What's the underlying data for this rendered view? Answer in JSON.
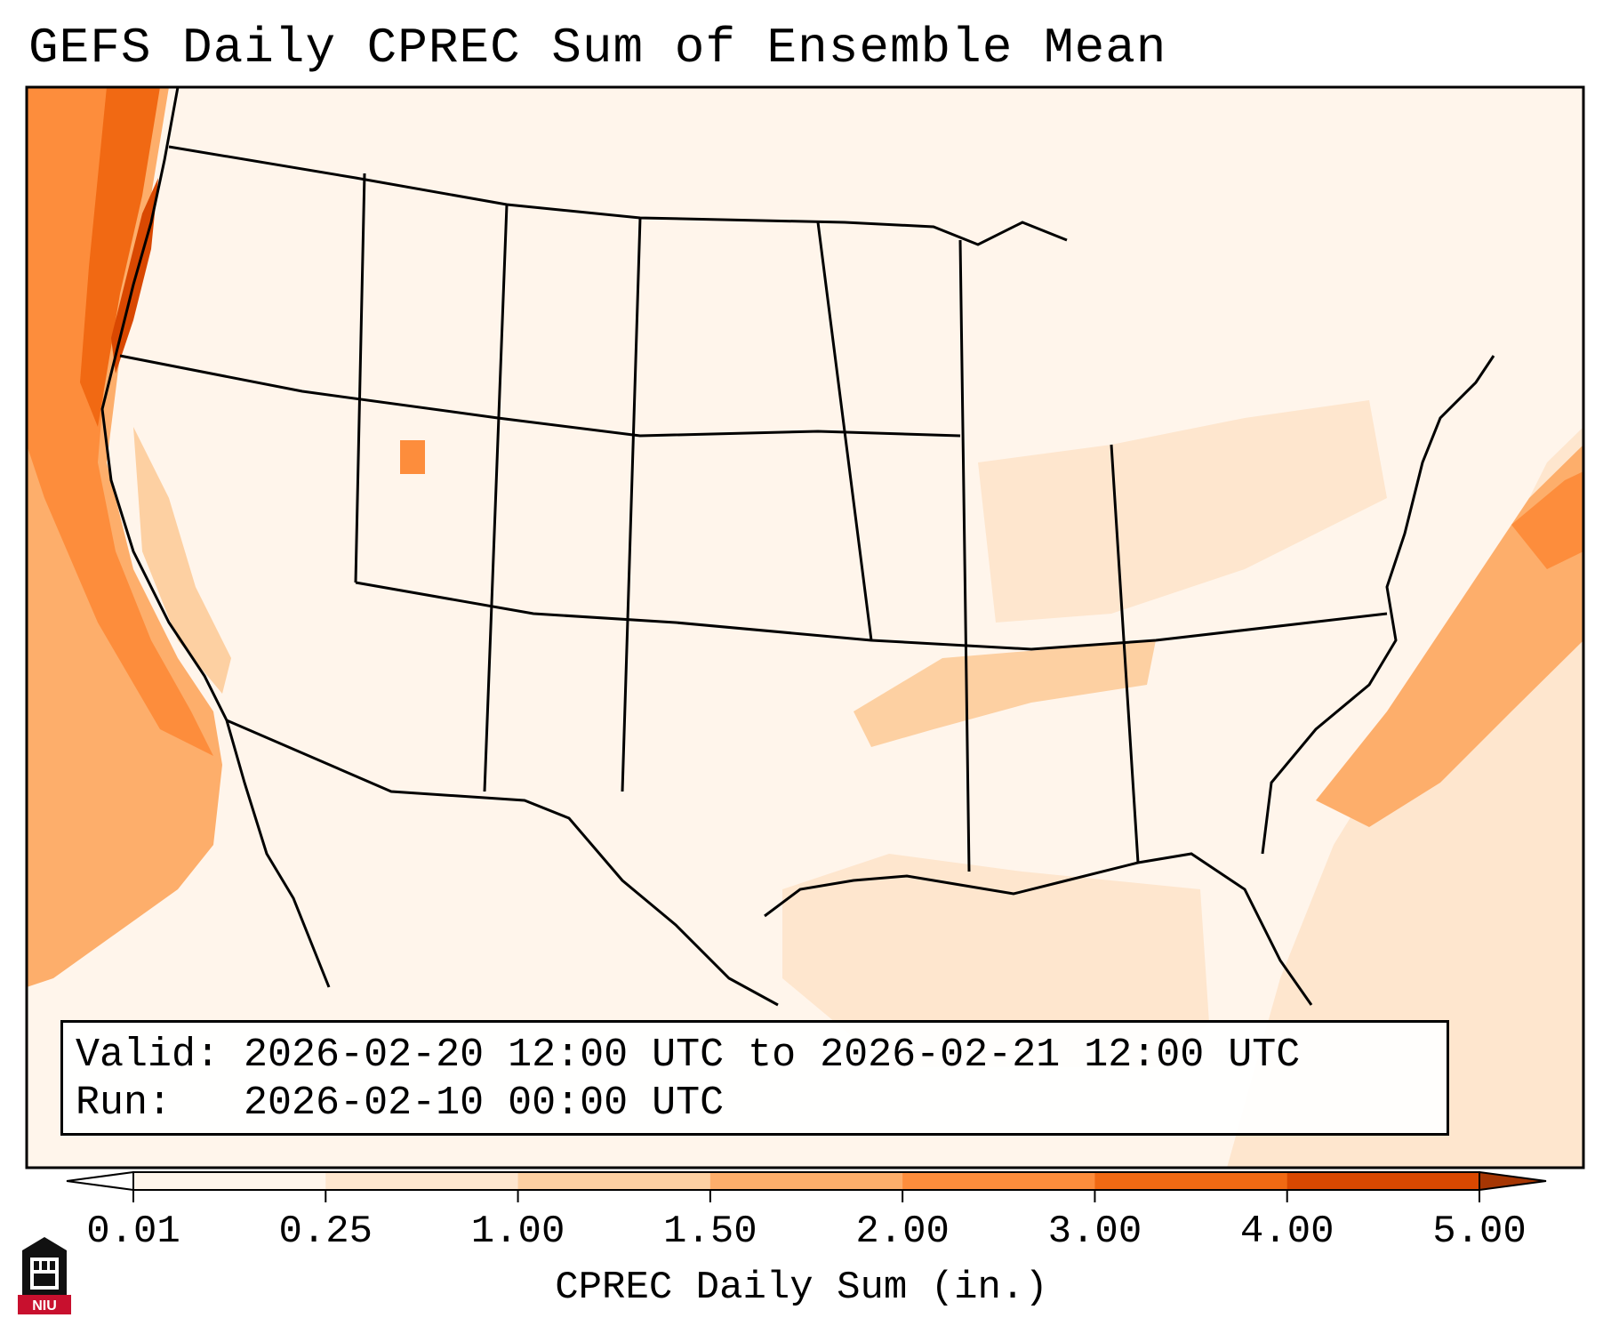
{
  "title": "GEFS Daily CPREC Sum of Ensemble Mean",
  "info": {
    "valid_label": "Valid:",
    "valid_value": "2026-02-20 12:00 UTC to 2026-02-21 12:00 UTC",
    "run_label": "Run:",
    "run_value": "2026-02-10 00:00 UTC"
  },
  "colorbar": {
    "ticks": [
      "0.01",
      "0.25",
      "1.00",
      "1.50",
      "2.00",
      "3.00",
      "4.00",
      "5.00"
    ],
    "colors": [
      "#fff5eb",
      "#fee6ce",
      "#fdd0a2",
      "#fdae6b",
      "#fd8d3c",
      "#f16913",
      "#d94801"
    ],
    "under_color": "#ffffff",
    "over_color": "#a63603",
    "label": "CPREC Daily Sum (in.)",
    "extend": "both"
  },
  "logo": {
    "text": "NIU",
    "icon": "niu-building-icon"
  },
  "colors": {
    "ocean_pacific": "#fdae6b",
    "coast_max": "#f16913",
    "gulf": "#fee6ce",
    "atlantic_band": "#fdae6b",
    "land_light": "#fff5eb"
  }
}
